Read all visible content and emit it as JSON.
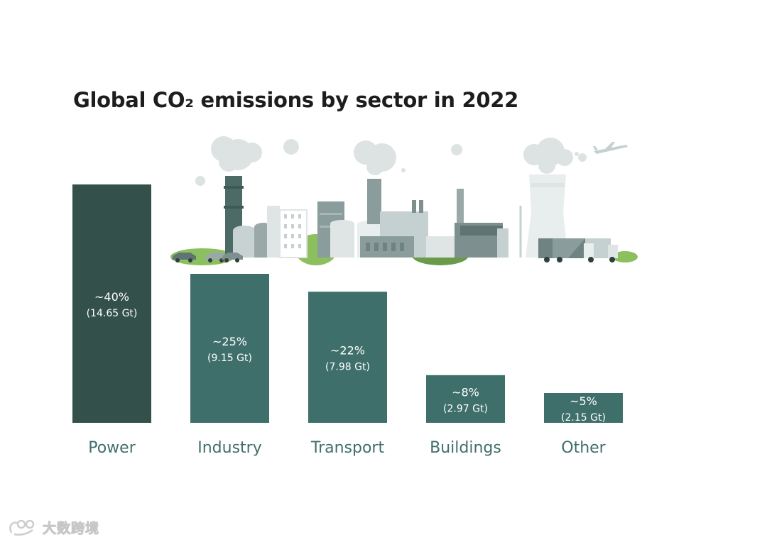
{
  "chart_data": {
    "type": "bar",
    "title": "Global CO₂ emissions by sector in 2022",
    "categories": [
      "Power",
      "Industry",
      "Transport",
      "Buildings",
      "Other"
    ],
    "values": [
      40,
      25,
      22,
      8,
      5
    ],
    "percent_labels": [
      "~40%",
      "~25%",
      "~22%",
      "~8%",
      "~5%"
    ],
    "value_labels": [
      "(14.65 Gt)",
      "(9.15 Gt)",
      "(7.98 Gt)",
      "(2.97 Gt)",
      "(2.15 Gt)"
    ],
    "colors": [
      "#34504b",
      "#3f6f6b",
      "#3f6f6b",
      "#3f6f6b",
      "#3f6f6b"
    ],
    "label_color": "#3f6f6b",
    "ylim": [
      0,
      40
    ],
    "grid": false,
    "legend": "none"
  },
  "illustration": {
    "description_icons": [
      "cloud-icon",
      "chimney-icon",
      "factory-icon",
      "car-icon",
      "truck-icon",
      "airplane-icon",
      "cooling-tower-icon"
    ]
  },
  "watermark": {
    "text": "大数跨境"
  }
}
